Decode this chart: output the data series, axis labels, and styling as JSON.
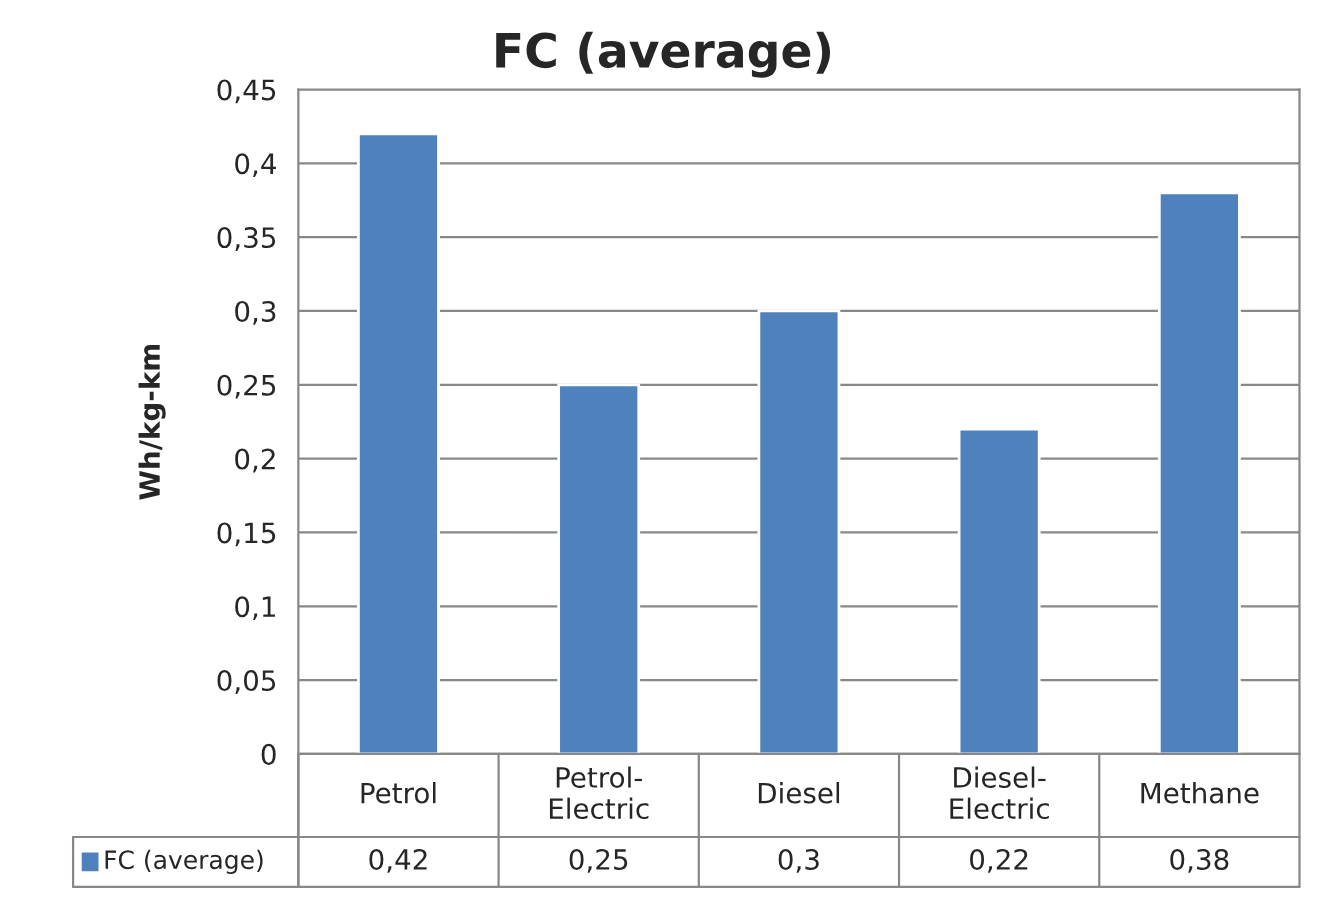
{
  "chart_data": {
    "type": "bar",
    "title": "FC (average)",
    "ylabel": "Wh/kg-km",
    "categories": [
      "Petrol",
      "Petrol-\nElectric",
      "Diesel",
      "Diesel-\nElectric",
      "Methane"
    ],
    "series": [
      {
        "name": "FC (average)",
        "color": "#4f81bd",
        "values": [
          0.42,
          0.25,
          0.3,
          0.22,
          0.38
        ],
        "value_labels": [
          "0,42",
          "0,25",
          "0,3",
          "0,22",
          "0,38"
        ]
      }
    ],
    "ylim": [
      0,
      0.45
    ],
    "yticks": [
      {
        "value": 0,
        "label": "0"
      },
      {
        "value": 0.05,
        "label": "0,05"
      },
      {
        "value": 0.1,
        "label": "0,1"
      },
      {
        "value": 0.15,
        "label": "0,15"
      },
      {
        "value": 0.2,
        "label": "0,2"
      },
      {
        "value": 0.25,
        "label": "0,25"
      },
      {
        "value": 0.3,
        "label": "0,3"
      },
      {
        "value": 0.35,
        "label": "0,35"
      },
      {
        "value": 0.4,
        "label": "0,4"
      },
      {
        "value": 0.45,
        "label": "0,45"
      }
    ],
    "grid": "y",
    "legend": "bottom"
  }
}
